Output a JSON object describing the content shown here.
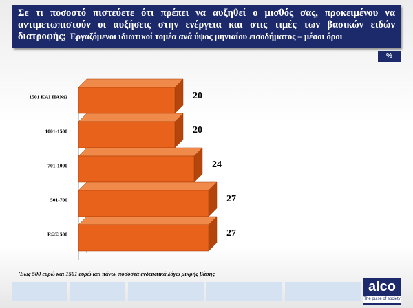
{
  "header": {
    "title": "Σε τι ποσοστό πιστεύετε ότι πρέπει να αυξηθεί ο μισθός σας, προκειμένου να αντιμετωπιστούν οι αυξήσεις στην ενέργεια και στις τιμές των βασικών ειδών διατροφής;",
    "subtitle": "Εργαζόμενοι ιδιωτικοί τομέα ανά ύψος μηνιαίου εισοδήματος – μέσοι όροι",
    "unit": "%"
  },
  "chart_data": {
    "type": "bar",
    "orientation": "horizontal",
    "categories": [
      "1501 ΚΑΙ ΠΑΝΩ",
      "1001-1500",
      "701-1000",
      "501-700",
      "ΕΩΣ 500"
    ],
    "values": [
      20,
      20,
      24,
      27,
      27
    ],
    "color": "#e8621c"
  },
  "footnote": "Έως 500 ευρώ και 1501 ευρώ και πάνω, ποσοστά ενδεικτικά λόγω μικρής βάσης",
  "logo": {
    "name": "alco",
    "tagline": "The pulse of society"
  }
}
